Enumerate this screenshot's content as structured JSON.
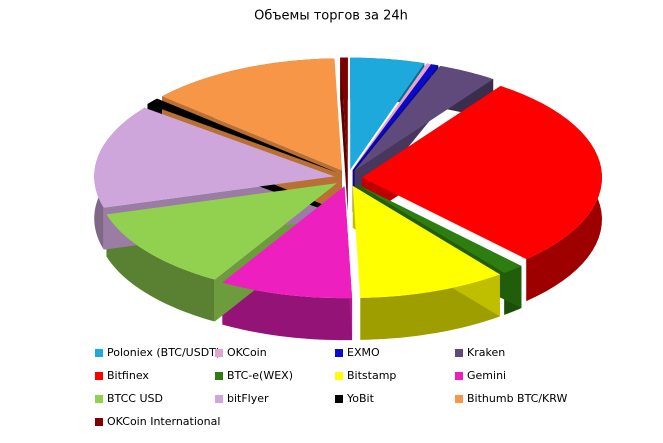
{
  "chart_data": {
    "type": "pie",
    "title": "Объемы торгов за 24h",
    "categories": [
      "Poloniex (BTC/USDT)",
      "OKCoin",
      "EXMO",
      "Kraken",
      "Bitfinex",
      "BTC-e(WEX)",
      "Bitstamp",
      "Gemini",
      "BTCC  USD",
      "bitFlyer",
      "YoBit",
      "Bithumb BTC/KRW",
      "OKCoin  International"
    ],
    "values": [
      5,
      0.3,
      0.5,
      4,
      28.2,
      1.5,
      10,
      9,
      12,
      15,
      1,
      13,
      0.5
    ],
    "colors": [
      "#1ea9dc",
      "#e6a3cf",
      "#0a0acc",
      "#604a7b",
      "#ff0000",
      "#2e7d10",
      "#ffff00",
      "#ee1fbf",
      "#92d050",
      "#cfa6dc",
      "#000000",
      "#f79646",
      "#7f0000"
    ],
    "legend": "bottom"
  }
}
